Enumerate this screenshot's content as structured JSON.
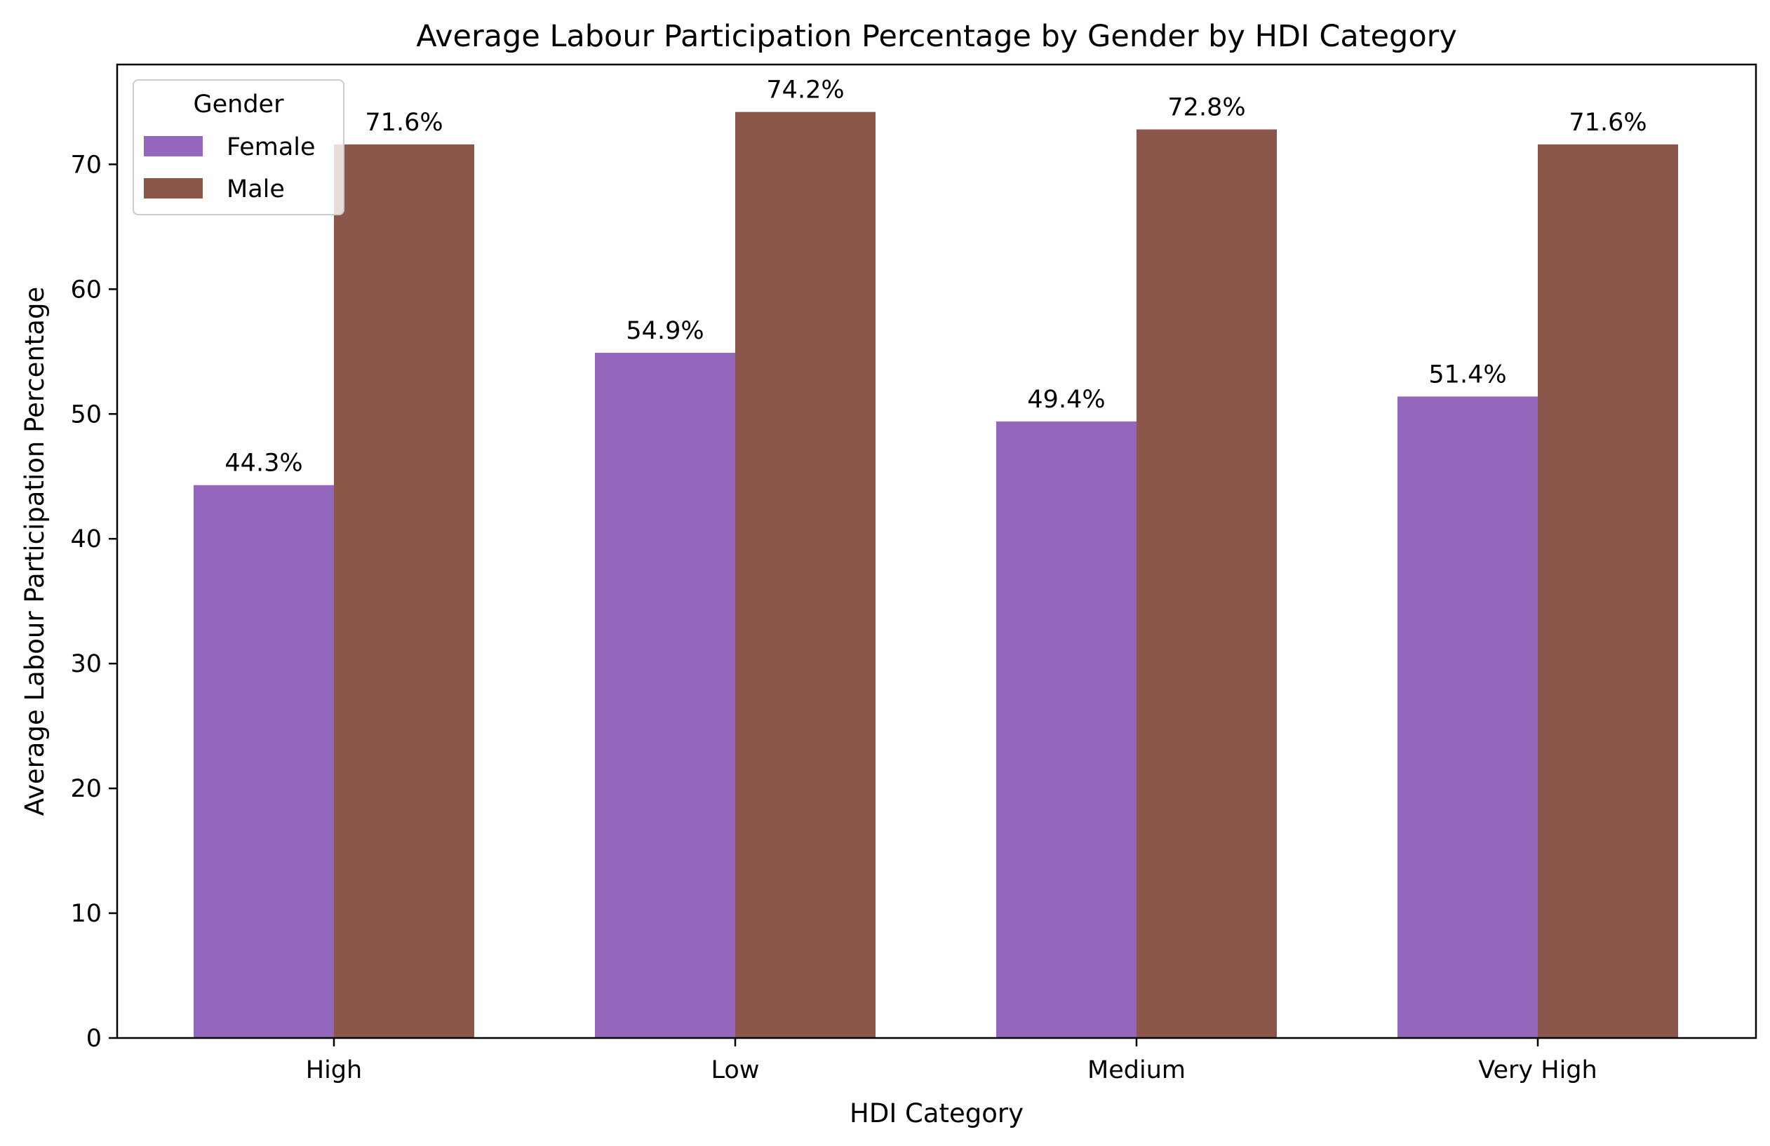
{
  "chart_data": {
    "type": "bar",
    "title": "Average Labour Participation Percentage by Gender by HDI Category",
    "xlabel": "HDI Category",
    "ylabel": "Average Labour Participation Percentage",
    "categories": [
      "High",
      "Low",
      "Medium",
      "Very High"
    ],
    "series": [
      {
        "name": "Female",
        "values": [
          44.3,
          54.9,
          49.4,
          51.4
        ],
        "labels": [
          "44.3%",
          "54.9%",
          "49.4%",
          "51.4%"
        ],
        "color": "#9467bd"
      },
      {
        "name": "Male",
        "values": [
          71.6,
          74.2,
          72.8,
          71.6
        ],
        "labels": [
          "71.6%",
          "74.2%",
          "72.8%",
          "71.6%"
        ],
        "color": "#8c564b"
      }
    ],
    "ylim": [
      0,
      78
    ],
    "yticks": [
      0,
      10,
      20,
      30,
      40,
      50,
      60,
      70
    ],
    "grid": false,
    "legend": {
      "title": "Gender",
      "placement": "top-left"
    }
  }
}
